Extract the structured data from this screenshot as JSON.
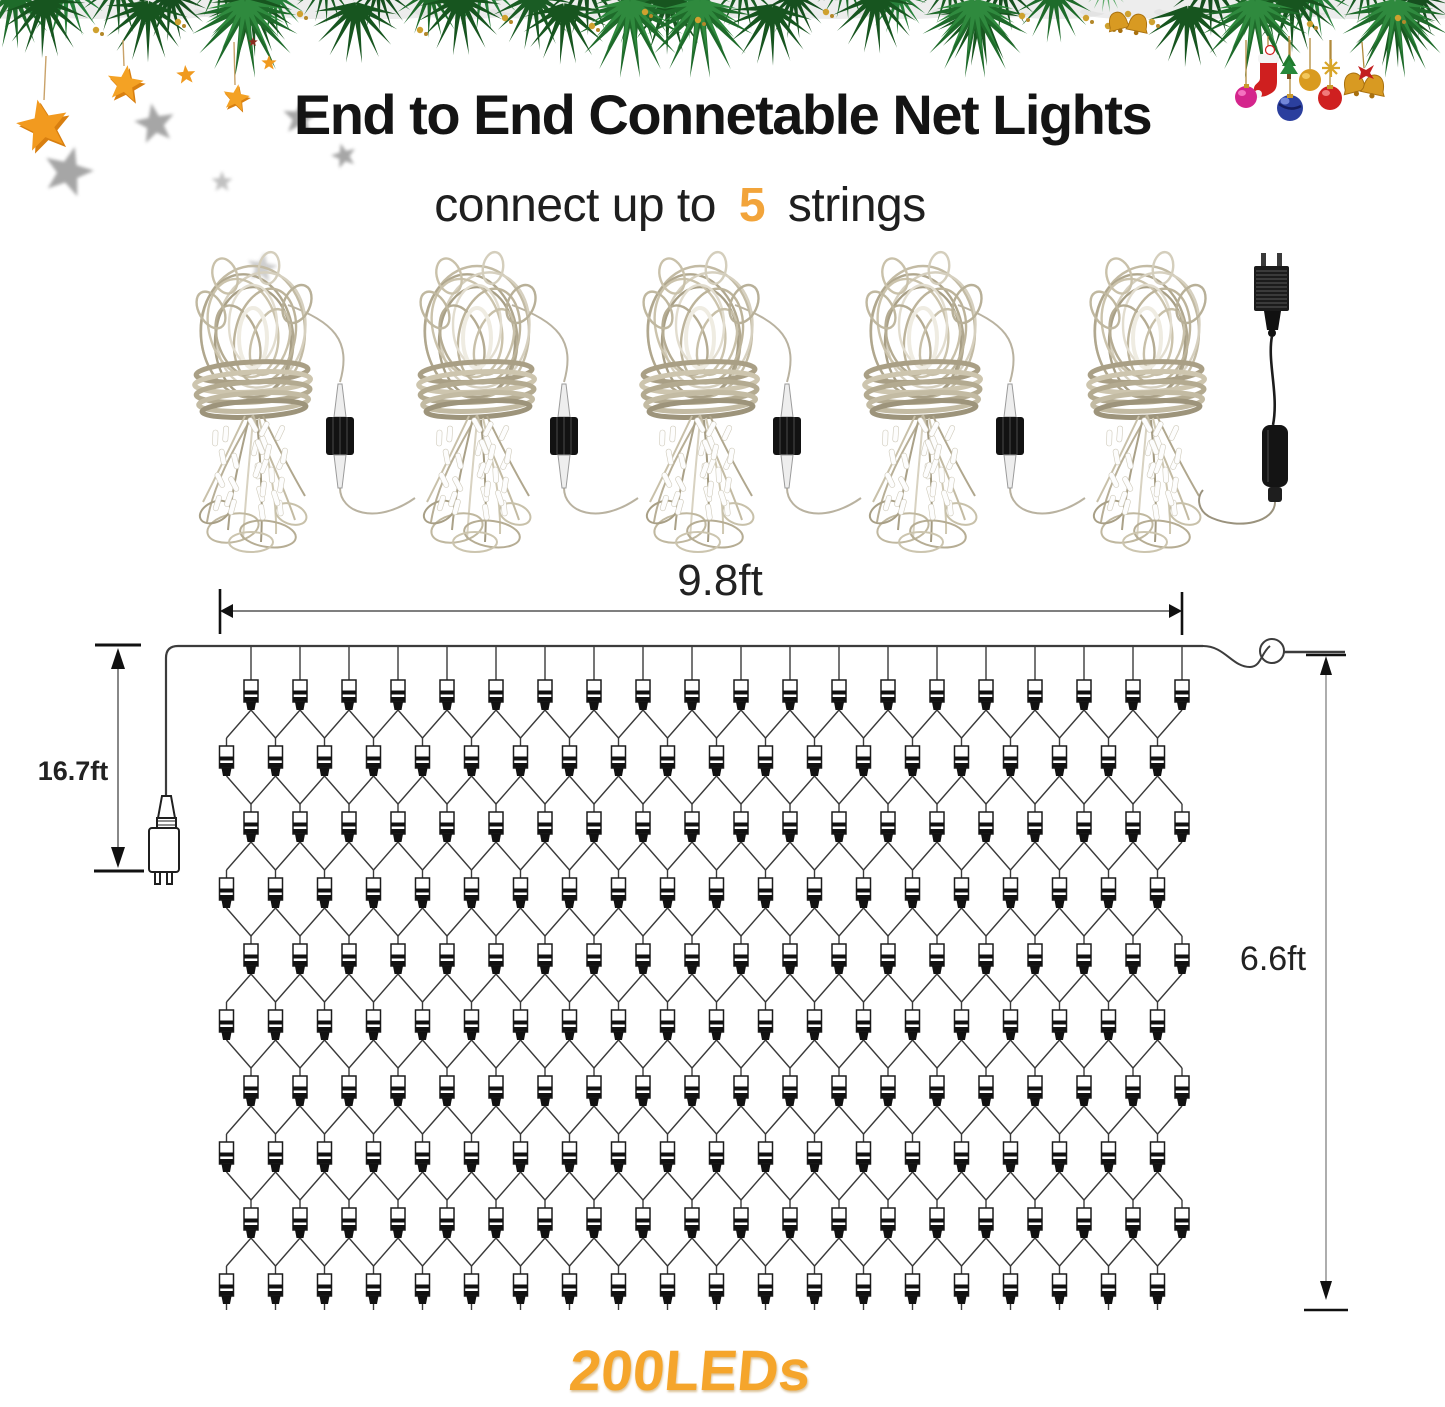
{
  "header": {
    "title": "End to End Connetable Net Lights",
    "subtitle": {
      "prefix": "connect up to",
      "highlight": "5",
      "suffix": "strings"
    }
  },
  "bundles": {
    "count": 5,
    "connector_count": 4
  },
  "dimensions": {
    "net_width": "9.8ft",
    "drop_with_plug": "16.7ft",
    "net_height": "6.6ft"
  },
  "net": {
    "rows": 10,
    "bulbs_per_row": 20,
    "total_leds_label": "200LEDs"
  },
  "colors": {
    "accent_orange": "#F2A43A",
    "led_orange": "#F5A52B",
    "title_black": "#141414",
    "garland_green": "#1E6B2A",
    "wire_gray": "#3A3A3A",
    "strand_khaki": "#C3BBA4"
  }
}
